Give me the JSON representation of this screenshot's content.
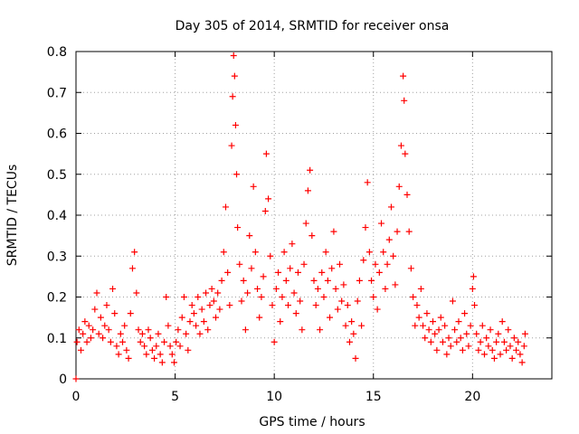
{
  "chart_data": {
    "type": "scatter",
    "title": "Day 305 of 2014, SRMTID for receiver onsa",
    "xlabel": "GPS time / hours",
    "ylabel": "SRMTID / TECUs",
    "xlim": [
      0,
      24
    ],
    "ylim": [
      0,
      0.8
    ],
    "xticks": [
      0,
      5,
      10,
      15,
      20
    ],
    "xtick_labels": [
      "0",
      "5",
      "10",
      "15",
      "20"
    ],
    "yticks": [
      0,
      0.1,
      0.2,
      0.3,
      0.4,
      0.5,
      0.6,
      0.7,
      0.8
    ],
    "ytick_labels": [
      "0",
      "0.1",
      "0.2",
      "0.3",
      "0.4",
      "0.5",
      "0.6",
      "0.7",
      "0.8"
    ],
    "grid": true,
    "marker": "+",
    "color": "#ff0000",
    "series": [
      {
        "name": "SRMTID",
        "points": [
          [
            0.0,
            0.0
          ],
          [
            0.05,
            0.09
          ],
          [
            0.15,
            0.12
          ],
          [
            0.25,
            0.07
          ],
          [
            0.35,
            0.11
          ],
          [
            0.45,
            0.14
          ],
          [
            0.55,
            0.09
          ],
          [
            0.65,
            0.13
          ],
          [
            0.75,
            0.1
          ],
          [
            0.85,
            0.12
          ],
          [
            0.95,
            0.17
          ],
          [
            1.05,
            0.21
          ],
          [
            1.15,
            0.11
          ],
          [
            1.25,
            0.15
          ],
          [
            1.35,
            0.1
          ],
          [
            1.45,
            0.13
          ],
          [
            1.55,
            0.18
          ],
          [
            1.65,
            0.12
          ],
          [
            1.75,
            0.09
          ],
          [
            1.85,
            0.22
          ],
          [
            1.95,
            0.16
          ],
          [
            2.05,
            0.08
          ],
          [
            2.15,
            0.06
          ],
          [
            2.25,
            0.11
          ],
          [
            2.35,
            0.09
          ],
          [
            2.45,
            0.13
          ],
          [
            2.55,
            0.07
          ],
          [
            2.65,
            0.05
          ],
          [
            2.75,
            0.16
          ],
          [
            2.85,
            0.27
          ],
          [
            2.95,
            0.31
          ],
          [
            3.05,
            0.21
          ],
          [
            3.15,
            0.12
          ],
          [
            3.25,
            0.09
          ],
          [
            3.35,
            0.11
          ],
          [
            3.45,
            0.08
          ],
          [
            3.55,
            0.06
          ],
          [
            3.65,
            0.12
          ],
          [
            3.75,
            0.1
          ],
          [
            3.85,
            0.07
          ],
          [
            3.95,
            0.05
          ],
          [
            4.05,
            0.08
          ],
          [
            4.15,
            0.11
          ],
          [
            4.25,
            0.06
          ],
          [
            4.35,
            0.04
          ],
          [
            4.45,
            0.09
          ],
          [
            4.55,
            0.2
          ],
          [
            4.65,
            0.13
          ],
          [
            4.75,
            0.08
          ],
          [
            4.85,
            0.06
          ],
          [
            4.95,
            0.04
          ],
          [
            5.05,
            0.09
          ],
          [
            5.15,
            0.12
          ],
          [
            5.25,
            0.08
          ],
          [
            5.35,
            0.15
          ],
          [
            5.45,
            0.2
          ],
          [
            5.55,
            0.11
          ],
          [
            5.65,
            0.07
          ],
          [
            5.75,
            0.14
          ],
          [
            5.85,
            0.18
          ],
          [
            5.95,
            0.16
          ],
          [
            6.05,
            0.13
          ],
          [
            6.15,
            0.2
          ],
          [
            6.25,
            0.11
          ],
          [
            6.35,
            0.17
          ],
          [
            6.45,
            0.14
          ],
          [
            6.55,
            0.21
          ],
          [
            6.65,
            0.12
          ],
          [
            6.75,
            0.18
          ],
          [
            6.85,
            0.22
          ],
          [
            6.95,
            0.19
          ],
          [
            7.05,
            0.15
          ],
          [
            7.15,
            0.21
          ],
          [
            7.25,
            0.17
          ],
          [
            7.35,
            0.24
          ],
          [
            7.45,
            0.31
          ],
          [
            7.55,
            0.42
          ],
          [
            7.65,
            0.26
          ],
          [
            7.75,
            0.18
          ],
          [
            7.85,
            0.57
          ],
          [
            7.9,
            0.69
          ],
          [
            7.95,
            0.79
          ],
          [
            8.0,
            0.74
          ],
          [
            8.05,
            0.62
          ],
          [
            8.1,
            0.5
          ],
          [
            8.15,
            0.37
          ],
          [
            8.25,
            0.28
          ],
          [
            8.35,
            0.19
          ],
          [
            8.45,
            0.24
          ],
          [
            8.55,
            0.12
          ],
          [
            8.65,
            0.21
          ],
          [
            8.75,
            0.35
          ],
          [
            8.85,
            0.27
          ],
          [
            8.95,
            0.47
          ],
          [
            9.05,
            0.31
          ],
          [
            9.15,
            0.22
          ],
          [
            9.25,
            0.15
          ],
          [
            9.35,
            0.2
          ],
          [
            9.45,
            0.25
          ],
          [
            9.55,
            0.41
          ],
          [
            9.6,
            0.55
          ],
          [
            9.7,
            0.44
          ],
          [
            9.8,
            0.3
          ],
          [
            9.9,
            0.18
          ],
          [
            10.0,
            0.09
          ],
          [
            10.1,
            0.22
          ],
          [
            10.2,
            0.26
          ],
          [
            10.3,
            0.14
          ],
          [
            10.4,
            0.2
          ],
          [
            10.5,
            0.31
          ],
          [
            10.6,
            0.24
          ],
          [
            10.7,
            0.18
          ],
          [
            10.8,
            0.27
          ],
          [
            10.9,
            0.33
          ],
          [
            11.0,
            0.21
          ],
          [
            11.1,
            0.16
          ],
          [
            11.2,
            0.26
          ],
          [
            11.3,
            0.19
          ],
          [
            11.4,
            0.12
          ],
          [
            11.5,
            0.28
          ],
          [
            11.6,
            0.38
          ],
          [
            11.7,
            0.46
          ],
          [
            11.8,
            0.51
          ],
          [
            11.9,
            0.35
          ],
          [
            12.0,
            0.24
          ],
          [
            12.1,
            0.18
          ],
          [
            12.2,
            0.22
          ],
          [
            12.3,
            0.12
          ],
          [
            12.4,
            0.26
          ],
          [
            12.5,
            0.2
          ],
          [
            12.6,
            0.31
          ],
          [
            12.7,
            0.24
          ],
          [
            12.8,
            0.15
          ],
          [
            12.9,
            0.27
          ],
          [
            13.0,
            0.36
          ],
          [
            13.1,
            0.22
          ],
          [
            13.2,
            0.17
          ],
          [
            13.3,
            0.28
          ],
          [
            13.4,
            0.19
          ],
          [
            13.5,
            0.23
          ],
          [
            13.6,
            0.13
          ],
          [
            13.7,
            0.18
          ],
          [
            13.8,
            0.09
          ],
          [
            13.9,
            0.14
          ],
          [
            14.0,
            0.11
          ],
          [
            14.1,
            0.05
          ],
          [
            14.2,
            0.19
          ],
          [
            14.3,
            0.24
          ],
          [
            14.4,
            0.13
          ],
          [
            14.5,
            0.29
          ],
          [
            14.6,
            0.37
          ],
          [
            14.7,
            0.48
          ],
          [
            14.8,
            0.31
          ],
          [
            14.9,
            0.24
          ],
          [
            15.0,
            0.2
          ],
          [
            15.1,
            0.28
          ],
          [
            15.2,
            0.17
          ],
          [
            15.3,
            0.26
          ],
          [
            15.4,
            0.38
          ],
          [
            15.5,
            0.31
          ],
          [
            15.6,
            0.22
          ],
          [
            15.7,
            0.28
          ],
          [
            15.8,
            0.34
          ],
          [
            15.9,
            0.42
          ],
          [
            16.0,
            0.3
          ],
          [
            16.1,
            0.23
          ],
          [
            16.2,
            0.36
          ],
          [
            16.3,
            0.47
          ],
          [
            16.4,
            0.57
          ],
          [
            16.5,
            0.74
          ],
          [
            16.55,
            0.68
          ],
          [
            16.6,
            0.55
          ],
          [
            16.7,
            0.45
          ],
          [
            16.8,
            0.36
          ],
          [
            16.9,
            0.27
          ],
          [
            17.0,
            0.2
          ],
          [
            17.1,
            0.13
          ],
          [
            17.2,
            0.18
          ],
          [
            17.3,
            0.15
          ],
          [
            17.4,
            0.22
          ],
          [
            17.5,
            0.13
          ],
          [
            17.6,
            0.1
          ],
          [
            17.7,
            0.16
          ],
          [
            17.8,
            0.12
          ],
          [
            17.9,
            0.09
          ],
          [
            18.0,
            0.14
          ],
          [
            18.1,
            0.11
          ],
          [
            18.2,
            0.07
          ],
          [
            18.3,
            0.12
          ],
          [
            18.4,
            0.15
          ],
          [
            18.5,
            0.09
          ],
          [
            18.6,
            0.13
          ],
          [
            18.7,
            0.06
          ],
          [
            18.8,
            0.1
          ],
          [
            18.9,
            0.08
          ],
          [
            19.0,
            0.19
          ],
          [
            19.1,
            0.12
          ],
          [
            19.2,
            0.09
          ],
          [
            19.3,
            0.14
          ],
          [
            19.4,
            0.1
          ],
          [
            19.5,
            0.07
          ],
          [
            19.6,
            0.16
          ],
          [
            19.7,
            0.11
          ],
          [
            19.8,
            0.08
          ],
          [
            19.9,
            0.13
          ],
          [
            20.0,
            0.22
          ],
          [
            20.05,
            0.25
          ],
          [
            20.1,
            0.18
          ],
          [
            20.2,
            0.11
          ],
          [
            20.3,
            0.07
          ],
          [
            20.4,
            0.09
          ],
          [
            20.5,
            0.13
          ],
          [
            20.6,
            0.06
          ],
          [
            20.7,
            0.1
          ],
          [
            20.8,
            0.08
          ],
          [
            20.9,
            0.12
          ],
          [
            21.0,
            0.07
          ],
          [
            21.1,
            0.05
          ],
          [
            21.2,
            0.09
          ],
          [
            21.3,
            0.11
          ],
          [
            21.4,
            0.06
          ],
          [
            21.5,
            0.14
          ],
          [
            21.6,
            0.09
          ],
          [
            21.7,
            0.07
          ],
          [
            21.8,
            0.12
          ],
          [
            21.9,
            0.08
          ],
          [
            22.0,
            0.05
          ],
          [
            22.1,
            0.1
          ],
          [
            22.2,
            0.07
          ],
          [
            22.3,
            0.09
          ],
          [
            22.4,
            0.06
          ],
          [
            22.5,
            0.04
          ],
          [
            22.6,
            0.08
          ],
          [
            22.65,
            0.11
          ]
        ]
      }
    ]
  }
}
